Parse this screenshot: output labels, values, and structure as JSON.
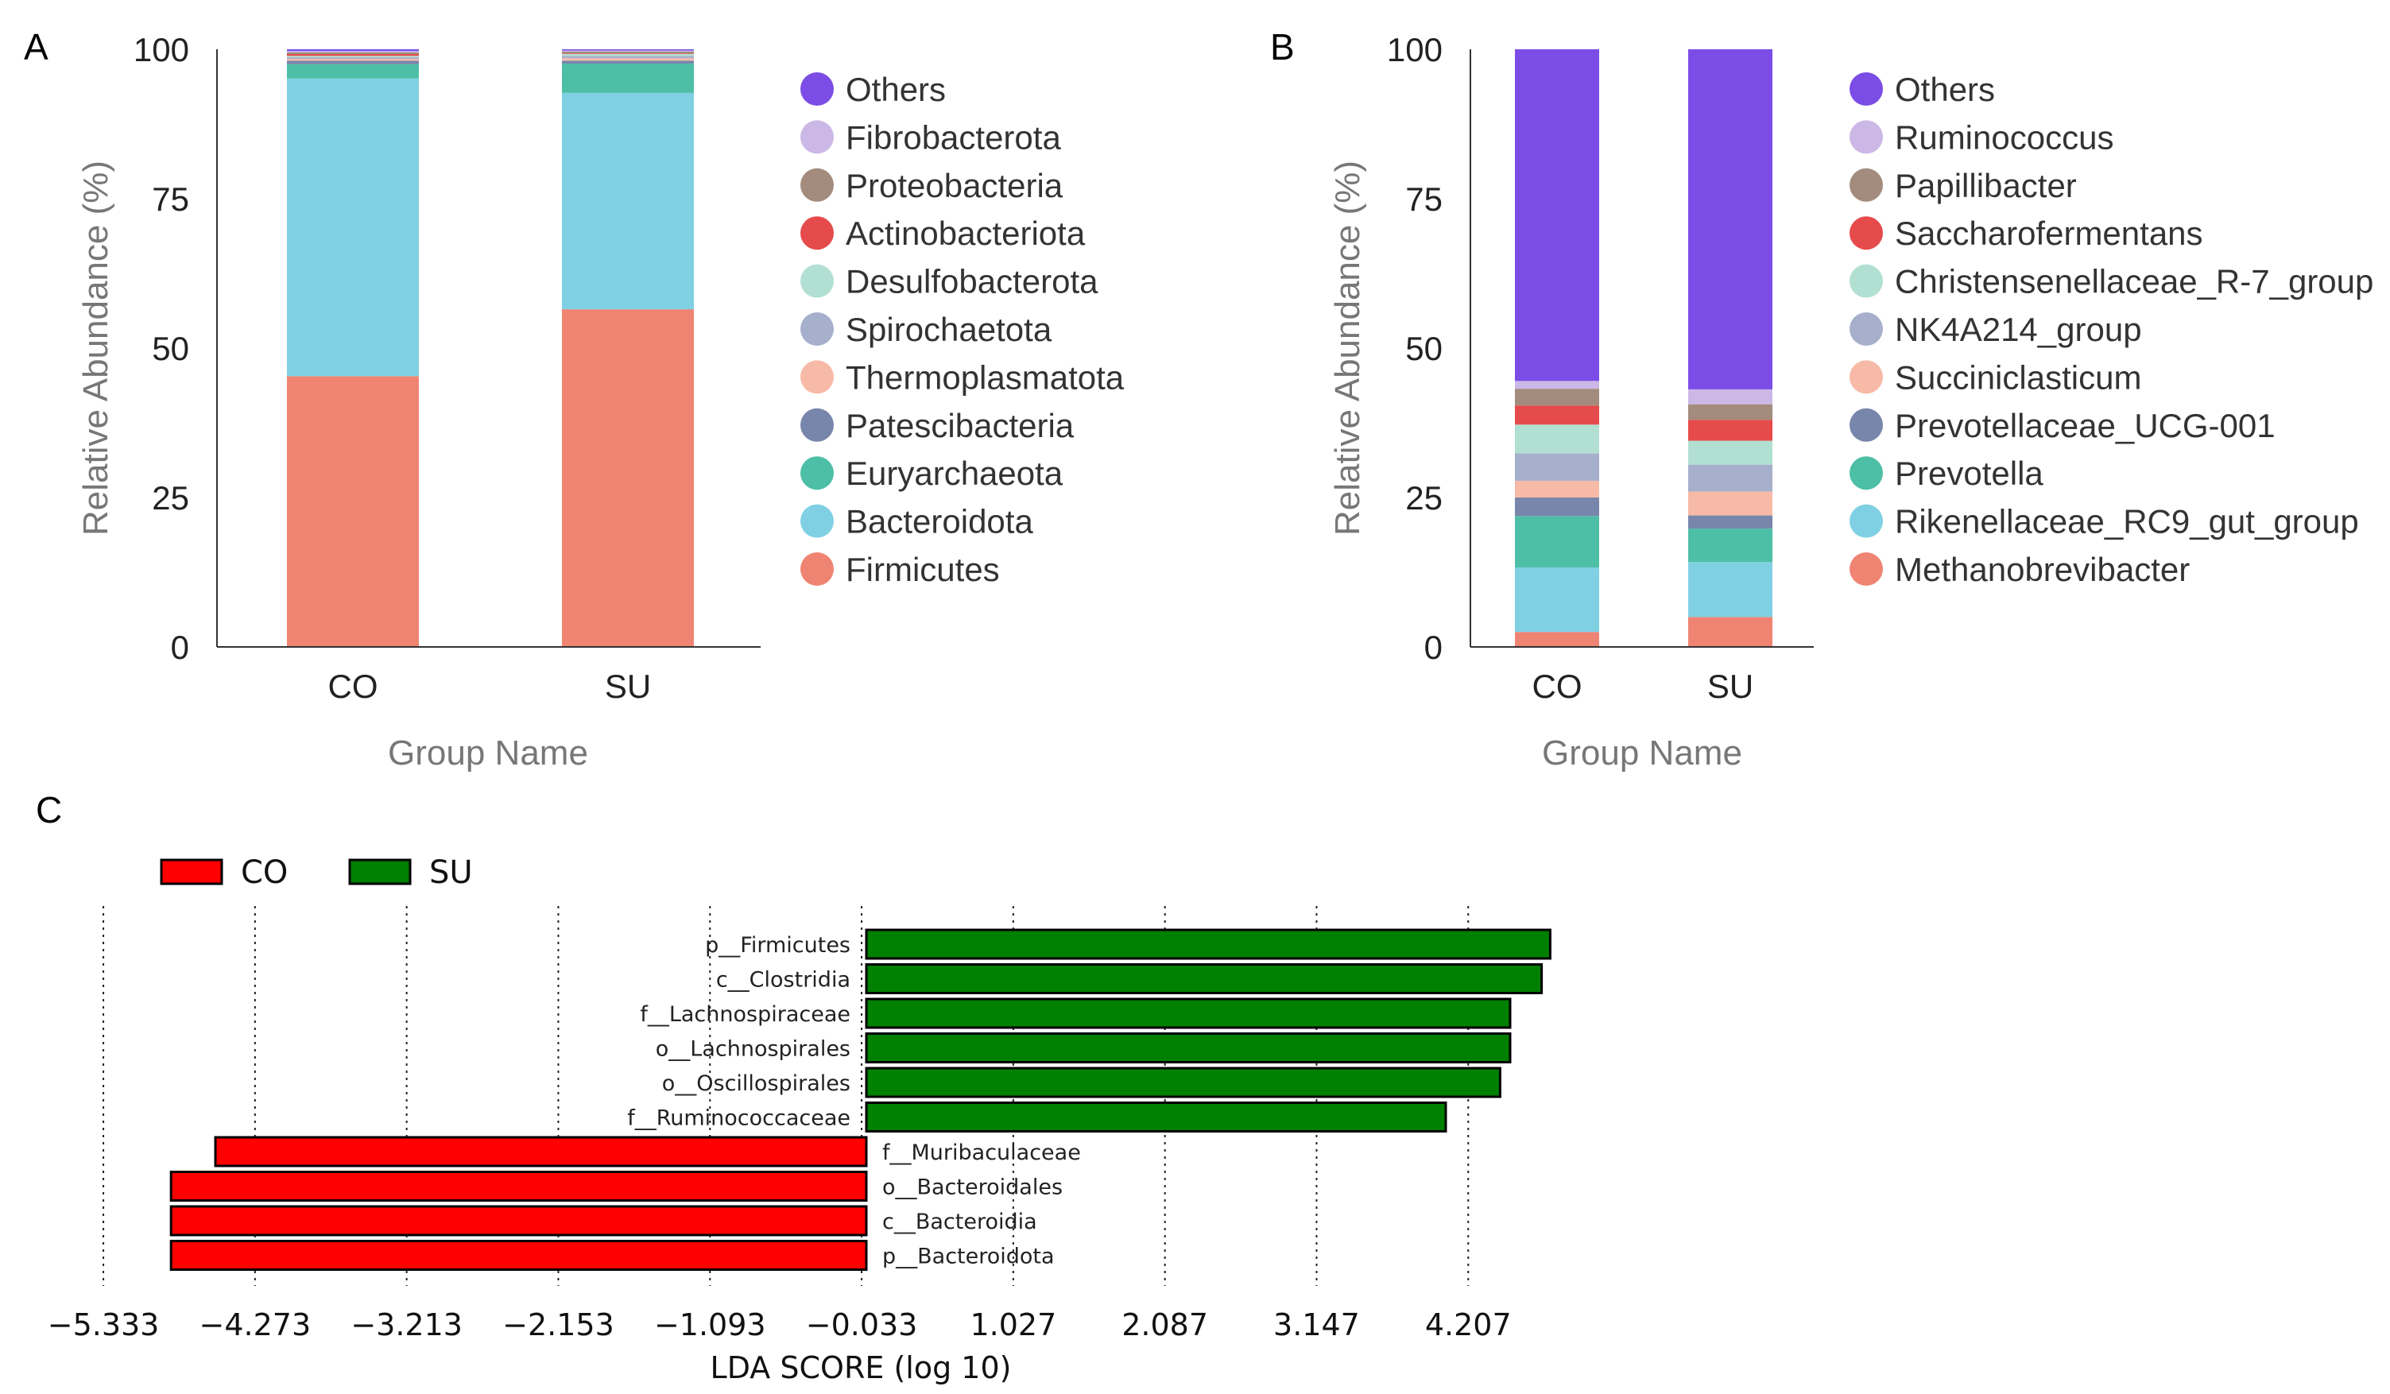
{
  "chart_data": [
    {
      "panel": "A",
      "type": "bar",
      "stacked": true,
      "xlabel": "Group Name",
      "ylabel": "Relative Abundance (%)",
      "ylim": [
        0,
        100
      ],
      "yticks": [
        "0",
        "25",
        "50",
        "75",
        "100"
      ],
      "categories": [
        "CO",
        "SU"
      ],
      "series": [
        {
          "name": "Firmicutes",
          "color": "#f08473",
          "values": [
            45.3,
            56.5
          ]
        },
        {
          "name": "Bacteroidota",
          "color": "#80d0e3",
          "values": [
            49.8,
            36.2
          ]
        },
        {
          "name": "Euryarchaeota",
          "color": "#4dbfa6",
          "values": [
            2.4,
            4.9
          ]
        },
        {
          "name": "Patescibacteria",
          "color": "#7886ab",
          "values": [
            0.6,
            0.5
          ]
        },
        {
          "name": "Thermoplasmatota",
          "color": "#f7baa6",
          "values": [
            0.3,
            0.4
          ]
        },
        {
          "name": "Spirochaetota",
          "color": "#a6b0cc",
          "values": [
            0.3,
            0.4
          ]
        },
        {
          "name": "Desulfobacterota",
          "color": "#b1e0d2",
          "values": [
            0.2,
            0.3
          ]
        },
        {
          "name": "Actinobacteriota",
          "color": "#e64b4b",
          "values": [
            0.3,
            0.1
          ]
        },
        {
          "name": "Proteobacteria",
          "color": "#a38c7d",
          "values": [
            0.3,
            0.3
          ]
        },
        {
          "name": "Fibrobacterota",
          "color": "#cbb8e6",
          "values": [
            0.2,
            0.2
          ]
        },
        {
          "name": "Others",
          "color": "#7b4de6",
          "values": [
            0.3,
            0.2
          ]
        }
      ],
      "legend": [
        "Others",
        "Fibrobacterota",
        "Proteobacteria",
        "Actinobacteriota",
        "Desulfobacterota",
        "Spirochaetota",
        "Thermoplasmatota",
        "Patescibacteria",
        "Euryarchaeota",
        "Bacteroidota",
        "Firmicutes"
      ]
    },
    {
      "panel": "B",
      "type": "bar",
      "stacked": true,
      "xlabel": "Group Name",
      "ylabel": "Relative Abundance (%)",
      "ylim": [
        0,
        100
      ],
      "yticks": [
        "0",
        "25",
        "50",
        "75",
        "100"
      ],
      "categories": [
        "CO",
        "SU"
      ],
      "series": [
        {
          "name": "Methanobrevibacter",
          "color": "#f08473",
          "values": [
            2.5,
            5.0
          ]
        },
        {
          "name": "Rikenellaceae_RC9_gut_group",
          "color": "#80d0e3",
          "values": [
            10.8,
            9.2
          ]
        },
        {
          "name": "Prevotella",
          "color": "#4dbfa6",
          "values": [
            8.6,
            5.6
          ]
        },
        {
          "name": "Prevotellaceae_UCG-001",
          "color": "#7886ab",
          "values": [
            3.1,
            2.2
          ]
        },
        {
          "name": "Succiniclasticum",
          "color": "#f7baa6",
          "values": [
            2.8,
            4.0
          ]
        },
        {
          "name": "NK4A214_group",
          "color": "#a6b0cc",
          "values": [
            4.6,
            4.5
          ]
        },
        {
          "name": "Christensenellaceae_R-7_group",
          "color": "#b1e0d2",
          "values": [
            4.8,
            4.0
          ]
        },
        {
          "name": "Saccharofermentans",
          "color": "#e64b4b",
          "values": [
            3.2,
            3.5
          ]
        },
        {
          "name": "Papillibacter",
          "color": "#a38c7d",
          "values": [
            2.8,
            2.6
          ]
        },
        {
          "name": "Ruminococcus",
          "color": "#cbb8e6",
          "values": [
            1.3,
            2.5
          ]
        },
        {
          "name": "Others",
          "color": "#7b4de6",
          "values": [
            55.5,
            56.9
          ]
        }
      ],
      "legend": [
        "Others",
        "Ruminococcus",
        "Papillibacter",
        "Saccharofermentans",
        "Christensenellaceae_R-7_group",
        "NK4A214_group",
        "Succiniclasticum",
        "Prevotellaceae_UCG-001",
        "Prevotella",
        "Rikenellaceae_RC9_gut_group",
        "Methanobrevibacter"
      ]
    },
    {
      "panel": "C",
      "type": "bar",
      "orientation": "horizontal",
      "xlabel": "LDA SCORE (log 10)",
      "xlim": [
        -5.333,
        4.8
      ],
      "xticks": [
        "−5.333",
        "−4.273",
        "−3.213",
        "−2.153",
        "−1.093",
        "−0.033",
        "1.027",
        "2.087",
        "3.147",
        "4.207"
      ],
      "xtick_values": [
        -5.333,
        -4.273,
        -3.213,
        -2.153,
        -1.093,
        -0.033,
        1.027,
        2.087,
        3.147,
        4.207
      ],
      "groups": [
        {
          "name": "CO",
          "color": "#ff0000"
        },
        {
          "name": "SU",
          "color": "#008000"
        }
      ],
      "bars": [
        {
          "label": "p__Firmicutes",
          "value": 4.78,
          "group": "SU"
        },
        {
          "label": "c__Clostridia",
          "value": 4.72,
          "group": "SU"
        },
        {
          "label": "f__Lachnospiraceae",
          "value": 4.5,
          "group": "SU"
        },
        {
          "label": "o__Lachnospirales",
          "value": 4.5,
          "group": "SU"
        },
        {
          "label": "o__Oscillospirales",
          "value": 4.43,
          "group": "SU"
        },
        {
          "label": "f__Ruminococcaceae",
          "value": 4.05,
          "group": "SU"
        },
        {
          "label": "f__Muribaculaceae",
          "value": -4.55,
          "group": "CO"
        },
        {
          "label": "o__Bacteroidales",
          "value": -4.86,
          "group": "CO"
        },
        {
          "label": "c__Bacteroidia",
          "value": -4.86,
          "group": "CO"
        },
        {
          "label": "p__Bacteroidota",
          "value": -4.86,
          "group": "CO"
        }
      ]
    }
  ],
  "panels": {
    "a": "A",
    "b": "B",
    "c": "C"
  }
}
